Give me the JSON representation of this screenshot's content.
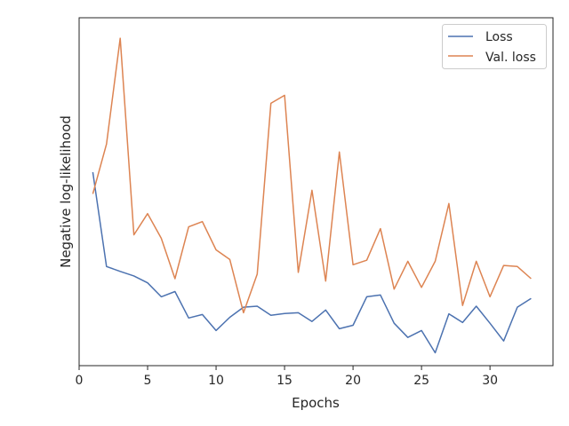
{
  "chart_data": {
    "type": "line",
    "title": "",
    "xlabel": "Epochs",
    "ylabel": "Negative log-likelihood",
    "xlim": [
      0,
      34.6
    ],
    "ylim": [
      0,
      100
    ],
    "xticks": [
      0,
      5,
      10,
      15,
      20,
      25,
      30
    ],
    "yticks": [],
    "grid": false,
    "legend": "top-right",
    "x": [
      1,
      2,
      3,
      4,
      5,
      6,
      7,
      8,
      9,
      10,
      11,
      12,
      13,
      14,
      15,
      16,
      17,
      18,
      19,
      20,
      21,
      22,
      23,
      24,
      25,
      26,
      27,
      28,
      29,
      30,
      31,
      32,
      33
    ],
    "series": [
      {
        "name": "Loss",
        "color": "#4c72b0",
        "values": [
          55.6,
          28.5,
          27.1,
          25.8,
          23.8,
          19.8,
          21.3,
          13.7,
          14.7,
          10.1,
          13.9,
          16.8,
          17.1,
          14.5,
          15.0,
          15.2,
          12.7,
          16.0,
          10.6,
          11.6,
          19.8,
          20.3,
          12.2,
          8.1,
          10.1,
          3.7,
          14.9,
          12.4,
          17.1,
          12.2,
          7.1,
          16.8,
          19.3
        ]
      },
      {
        "name": "Val. loss",
        "color": "#dd8452",
        "values": [
          49.4,
          63.7,
          94.1,
          37.6,
          43.7,
          36.6,
          25.0,
          39.9,
          41.4,
          33.3,
          30.5,
          15.2,
          26.3,
          75.4,
          77.7,
          26.8,
          50.4,
          24.3,
          61.4,
          29.0,
          30.3,
          39.4,
          22.0,
          30.0,
          22.5,
          30.0,
          46.6,
          17.3,
          30.0,
          19.8,
          28.8,
          28.5,
          25.0
        ]
      }
    ]
  }
}
